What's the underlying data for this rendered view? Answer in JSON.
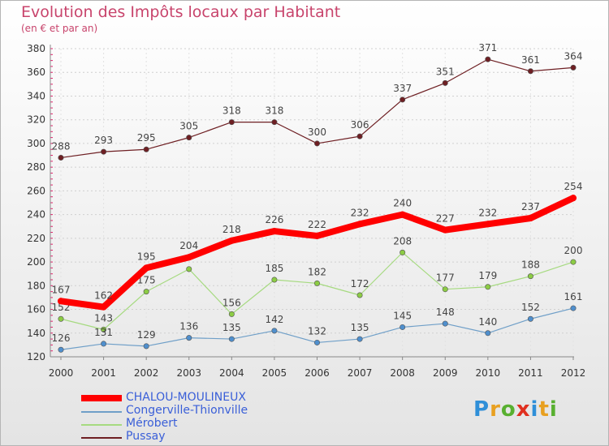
{
  "header": {
    "title": "Evolution des Impôts locaux par Habitant",
    "subtitle": "(en € et par an)"
  },
  "brand": {
    "text": "Proxiti",
    "colors": [
      "#2f8fd8",
      "#e8a020",
      "#58b030",
      "#e03020",
      "#2f8fd8",
      "#e8a020",
      "#58b030"
    ]
  },
  "chart_data": {
    "type": "line",
    "title": "Evolution des Impôts locaux par Habitant",
    "ylabel": "(en € et par an)",
    "xlabel": "",
    "categories": [
      "2000",
      "2001",
      "2002",
      "2003",
      "2004",
      "2005",
      "2006",
      "2007",
      "2008",
      "2009",
      "2010",
      "2011",
      "2012"
    ],
    "ylim": [
      120,
      380
    ],
    "yticks": [
      120,
      140,
      160,
      180,
      200,
      220,
      240,
      260,
      280,
      300,
      320,
      340,
      360,
      380
    ],
    "grid": true,
    "legend_position": "bottom-left",
    "series": [
      {
        "name": "Pussay",
        "color": "#6e1f23",
        "marker": "#6e1f23",
        "width": 1.2,
        "values": [
          288,
          293,
          295,
          305,
          318,
          318,
          300,
          306,
          337,
          351,
          371,
          361,
          364
        ]
      },
      {
        "name": "Mérobert",
        "color": "#a6da80",
        "marker": "#8ccc44",
        "width": 1.2,
        "values": [
          152,
          143,
          175,
          194,
          156,
          185,
          182,
          172,
          208,
          177,
          179,
          188,
          200
        ],
        "labels": [
          "152",
          "143",
          "175",
          "",
          "156",
          "185",
          "182",
          "172",
          "208",
          "177",
          "179",
          "188",
          "200"
        ]
      },
      {
        "name": "Congerville-Thionville",
        "color": "#6f9fc8",
        "marker": "#4f8fcd",
        "width": 1.2,
        "values": [
          126,
          131,
          129,
          136,
          135,
          142,
          132,
          135,
          145,
          148,
          140,
          152,
          161
        ]
      },
      {
        "name": "CHALOU-MOULINEUX",
        "color": "#ff0000",
        "marker": "#ff0000",
        "width": 8,
        "values": [
          167,
          162,
          195,
          204,
          218,
          226,
          222,
          232,
          240,
          227,
          232,
          237,
          254
        ]
      }
    ],
    "legend": [
      "CHALOU-MOULINEUX",
      "Congerville-Thionville",
      "Mérobert",
      "Pussay"
    ]
  }
}
